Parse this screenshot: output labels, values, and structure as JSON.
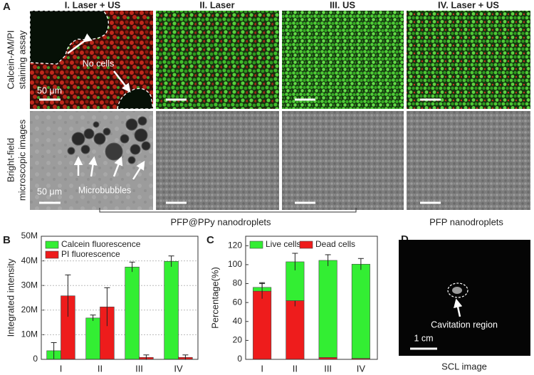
{
  "panel_a": {
    "label": "A",
    "columns": [
      "I. Laser + US",
      "II. Laser",
      "III. US",
      "IV. Laser + US"
    ],
    "rows": [
      [
        "Calcein-AM/PI",
        "staining assay"
      ],
      [
        "Bright-field",
        "microscopic images"
      ]
    ],
    "annotations": {
      "no_cells": "No cells",
      "microbubbles": "Microbubbles",
      "scale_top": "50 μm",
      "scale_bottom": "50 μm"
    },
    "groups": [
      "PFP@PPy nanodroplets",
      "PFP nanodroplets"
    ]
  },
  "chart_data": [
    {
      "type": "bar",
      "label": "B",
      "categories": [
        "I",
        "II",
        "III",
        "IV"
      ],
      "y_label": "Integrated intensity",
      "series": [
        {
          "name": "Calcein fluorescence",
          "color": "#33ee33",
          "values": [
            3500000,
            16800000,
            37500000,
            39800000
          ],
          "errors": [
            3300000,
            1200000,
            2000000,
            2200000
          ]
        },
        {
          "name": "PI fluorescence",
          "color": "#ee1c1c",
          "values": [
            25800000,
            21300000,
            800000,
            800000
          ],
          "errors": [
            8500000,
            7800000,
            1000000,
            1000000
          ]
        }
      ],
      "ylim": [
        0,
        50000000
      ],
      "yticks": [
        0,
        {
          "value": 10000000,
          "label": "10M"
        },
        {
          "value": 20000000,
          "label": "20M"
        },
        {
          "value": 30000000,
          "label": "30M"
        },
        {
          "value": 40000000,
          "label": "40M"
        },
        {
          "value": 50000000,
          "label": "50M"
        }
      ],
      "grid": true,
      "legend": "upper left",
      "legend_columns": 1
    },
    {
      "type": "stacked_bar",
      "label": "C",
      "categories": [
        "I",
        "II",
        "III",
        "IV"
      ],
      "y_label": "Percentage(%)",
      "series": [
        {
          "name": "Dead cells",
          "color": "#ee1c1c",
          "values": [
            72,
            62,
            2,
            1
          ],
          "errors": [
            8,
            6,
            0,
            0
          ]
        },
        {
          "name": "Live cells",
          "color": "#33ee33",
          "values": [
            4,
            41,
            102.5,
            99.5
          ],
          "errors": [
            5,
            9,
            6,
            6
          ]
        }
      ],
      "ylim": [
        0,
        130
      ],
      "yticks": [
        0,
        20,
        40,
        60,
        80,
        100,
        120
      ],
      "grid": false,
      "legend": "upper left",
      "legend_columns": 2
    }
  ],
  "panel_d": {
    "label": "D",
    "annotation": "Cavitation region",
    "scale": "1 cm",
    "caption": "SCL image"
  }
}
